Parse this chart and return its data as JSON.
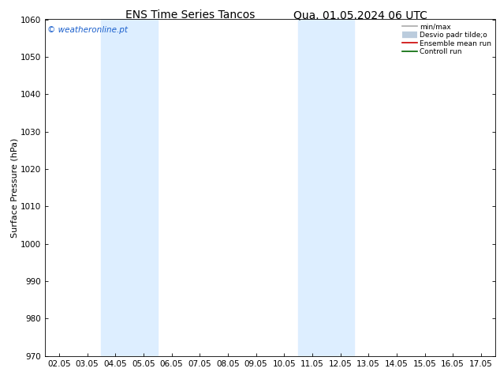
{
  "title_left": "ENS Time Series Tancos",
  "title_right": "Qua. 01.05.2024 06 UTC",
  "ylabel": "Surface Pressure (hPa)",
  "ylim": [
    970,
    1060
  ],
  "yticks": [
    970,
    980,
    990,
    1000,
    1010,
    1020,
    1030,
    1040,
    1050,
    1060
  ],
  "xtick_labels": [
    "02.05",
    "03.05",
    "04.05",
    "05.05",
    "06.05",
    "07.05",
    "08.05",
    "09.05",
    "10.05",
    "11.05",
    "12.05",
    "13.05",
    "14.05",
    "15.05",
    "16.05",
    "17.05"
  ],
  "shaded_regions": [
    {
      "xmin": 2,
      "xmax": 4,
      "color": "#ddeeff"
    },
    {
      "xmin": 9,
      "xmax": 11,
      "color": "#ddeeff"
    }
  ],
  "watermark_text": "© weatheronline.pt",
  "watermark_color": "#1a5fcc",
  "legend_entries": [
    {
      "label": "min/max",
      "color": "#aaaaaa",
      "lw": 1.2,
      "type": "line"
    },
    {
      "label": "Desvio padr tilde;o",
      "color": "#bbccdd",
      "lw": 6,
      "type": "band"
    },
    {
      "label": "Ensemble mean run",
      "color": "#cc0000",
      "lw": 1.2,
      "type": "line"
    },
    {
      "label": "Controll run",
      "color": "#006600",
      "lw": 1.2,
      "type": "line"
    }
  ],
  "bg_color": "#ffffff",
  "title_fontsize": 10,
  "label_fontsize": 8,
  "tick_fontsize": 7.5
}
